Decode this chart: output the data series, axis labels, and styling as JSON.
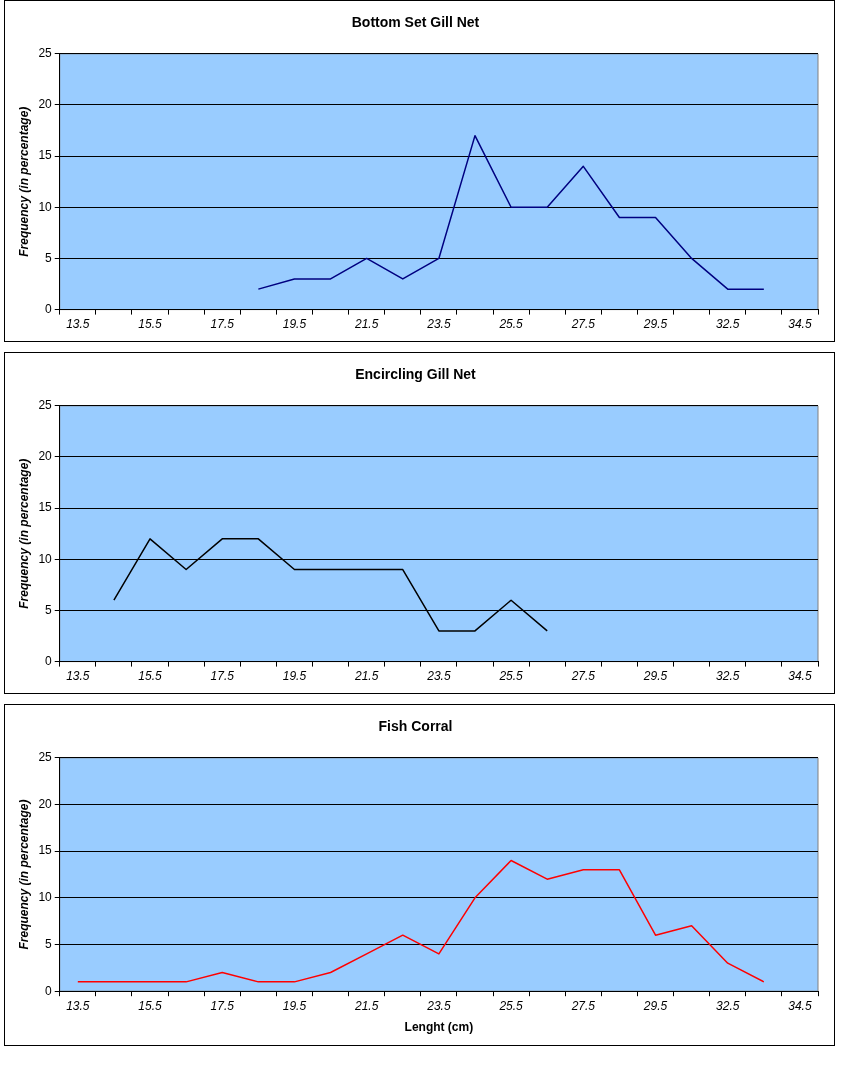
{
  "chart_data": [
    {
      "type": "line",
      "title": "Bottom Set Gill Net",
      "ylabel": "Frequency (in percentage)",
      "categories": [
        "13.5",
        null,
        "15.5",
        null,
        "17.5",
        null,
        "19.5",
        null,
        "21.5",
        null,
        "23.5",
        null,
        "25.5",
        null,
        "27.5",
        null,
        "29.5",
        null,
        "32.5",
        null,
        "34.5"
      ],
      "series": [
        {
          "color": "#000080",
          "values": [
            null,
            null,
            null,
            null,
            null,
            2,
            3,
            3,
            5,
            3,
            5,
            17,
            10,
            10,
            14,
            9,
            9,
            5,
            2,
            2,
            null
          ]
        }
      ],
      "ylim": [
        0,
        25
      ],
      "yticks": [
        0,
        5,
        10,
        15,
        20,
        25
      ],
      "grid": "y",
      "marker": "none"
    },
    {
      "type": "line",
      "title": "Encircling Gill Net",
      "ylabel": "Frequency (in percentage)",
      "categories": [
        "13.5",
        null,
        "15.5",
        null,
        "17.5",
        null,
        "19.5",
        null,
        "21.5",
        null,
        "23.5",
        null,
        "25.5",
        null,
        "27.5",
        null,
        "29.5",
        null,
        "32.5",
        null,
        "34.5"
      ],
      "series": [
        {
          "color": "#000000",
          "values": [
            null,
            6,
            12,
            9,
            12,
            12,
            9,
            9,
            9,
            9,
            3,
            3,
            6,
            3,
            null,
            null,
            null,
            null,
            null,
            null,
            null
          ]
        }
      ],
      "ylim": [
        0,
        25
      ],
      "yticks": [
        0,
        5,
        10,
        15,
        20,
        25
      ],
      "grid": "y",
      "marker": "none"
    },
    {
      "type": "line",
      "title": "Fish Corral",
      "ylabel": "Frequency (in percentage)",
      "xlabel": "Lenght (cm)",
      "categories": [
        "13.5",
        null,
        "15.5",
        null,
        "17.5",
        null,
        "19.5",
        null,
        "21.5",
        null,
        "23.5",
        null,
        "25.5",
        null,
        "27.5",
        null,
        "29.5",
        null,
        "32.5",
        null,
        "34.5"
      ],
      "series": [
        {
          "color": "#ff0000",
          "values": [
            1,
            1,
            1,
            1,
            2,
            1,
            1,
            2,
            4,
            6,
            4,
            10,
            14,
            12,
            13,
            13,
            6,
            7,
            3,
            1,
            null
          ]
        }
      ],
      "ylim": [
        0,
        25
      ],
      "yticks": [
        0,
        5,
        10,
        15,
        20,
        25
      ],
      "grid": "y",
      "marker": "none"
    }
  ]
}
